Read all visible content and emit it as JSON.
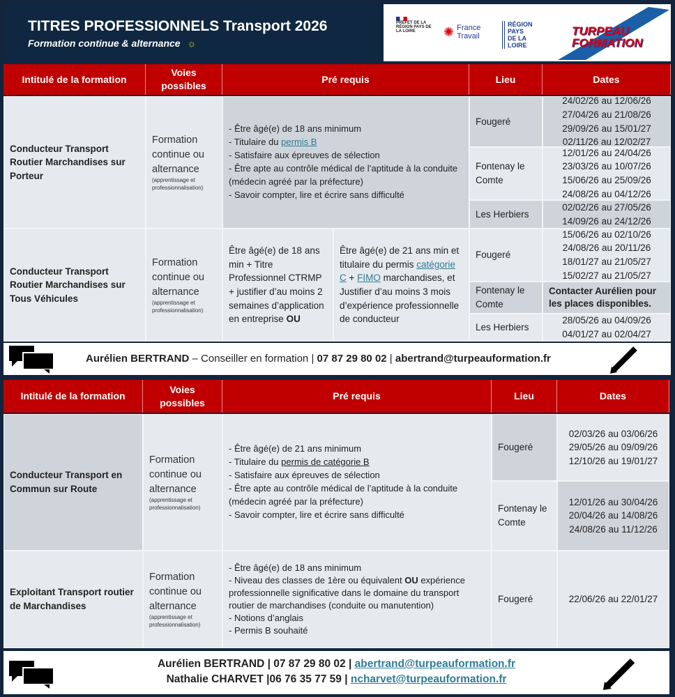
{
  "header": {
    "title": "TITRES PROFESSIONNELS Transport 2026",
    "subtitle": "Formation continue & alternance",
    "bulb_icon": "lightbulb-icon",
    "logos": {
      "prefet": "PRÉFET DE LA RÉGION PAYS DE LA LOIRE",
      "france_travail": "France Travail",
      "region": "RÉGION PAYS DE LA LOIRE",
      "turpeau": "TURPEAU FORMATION"
    }
  },
  "columns": {
    "intitule": "Intitulé de la formation",
    "voies": "Voies possibles",
    "prerequis": "Pré requis",
    "lieu": "Lieu",
    "dates": "Dates"
  },
  "voie": {
    "main": "Formation continue ou alternance",
    "sub": "(apprentissage et professionnalisation)"
  },
  "table1": {
    "row1": {
      "title": "Conducteur Transport Routier Marchandises sur Porteur",
      "prereq": [
        "- Être âgé(e) de 18 ans minimum",
        "- Titulaire du ",
        "permis B",
        "- Satisfaire aux épreuves de sélection",
        "- Être apte au contrôle médical de l’aptitude à la conduite (médecin agréé par la préfecture)",
        "- Savoir compter, lire et écrire sans difficulté"
      ],
      "sites": [
        {
          "lieu": "Fougeré",
          "dates": [
            "24/02/26 au 12/06/26",
            "27/04/26 au 21/08/26",
            "29/09/26 au 15/01/27",
            "02/11/26 au 12/02/27"
          ]
        },
        {
          "lieu": "Fontenay le Comte",
          "dates": [
            "12/01/26 au 24/04/26",
            "23/03/26 au 10/07/26",
            "15/06/26 au 25/09/26",
            "24/08/26 au 04/12/26"
          ]
        },
        {
          "lieu": "Les Herbiers",
          "dates": [
            "02/02/26 au 27/05/26",
            "14/09/26 au 24/12/26"
          ]
        }
      ]
    },
    "row2": {
      "title": "Conducteur Transport Routier Marchandises sur Tous Véhicules",
      "prereq_a": "Être âgé(e) de 18 ans min + Titre Professionnel CTRMP + justifier d’au moins 2 semaines d’application en entreprise ",
      "prereq_a_ou": "OU",
      "prereq_b1": "Être âgé(e) de 21 ans min et titulaire du permis ",
      "prereq_b_link1": "catégorie C",
      "prereq_b_plus": " + ",
      "prereq_b_link2": "FIMO",
      "prereq_b2": " marchandises, et Justifier d’au moins 3 mois d’expérience professionnelle de conducteur",
      "sites": [
        {
          "lieu": "Fougeré",
          "dates": [
            "15/06/26 au 02/10/26",
            "24/08/26 au 20/11/26",
            "18/01/27 au 21/05/27",
            "15/02/27 au 21/05/27"
          ]
        },
        {
          "lieu": "Fontenay le Comte",
          "note": "Contacter Aurélien pour les places disponibles."
        },
        {
          "lieu": "Les Herbiers",
          "dates": [
            "28/05/26 au 04/09/26",
            "04/01/27 au 02/04/27"
          ]
        }
      ]
    }
  },
  "contact1": {
    "name": "Aurélien BERTRAND",
    "role": " – Conseiller en formation ",
    "sep": " | ",
    "phone": "07 87 29 80 02",
    "email": "abertrand@turpeauformation.fr"
  },
  "table2": {
    "row1": {
      "title": "Conducteur Transport en Commun sur Route",
      "prereq": [
        "- Être âgé(e) de 21 ans minimum",
        "- Titulaire du ",
        "permis de catégorie B",
        "- Satisfaire aux épreuves de sélection",
        "- Être apte au contrôle médical de l’aptitude à la conduite (médecin agréé par la préfecture)",
        "- Savoir compter, lire et écrire sans difficulté"
      ],
      "sites": [
        {
          "lieu": "Fougeré",
          "dates": [
            "02/03/26 au 03/06/26",
            "29/05/26 au 09/09/26",
            "12/10/26 au 19/01/27"
          ]
        },
        {
          "lieu": "Fontenay le Comte",
          "dates": [
            "12/01/26 au 30/04/26",
            "20/04/26 au 14/08/26",
            "24/08/26 au 11/12/26"
          ]
        }
      ]
    },
    "row2": {
      "title": "Exploitant Transport routier de Marchandises",
      "prereq": [
        "- Être âgé(e) de 18 ans minimum",
        "- Niveau des classes de 1ère ou équivalent ",
        "OU",
        " expérience professionnelle significative dans le domaine du transport routier de marchandises (conduite ou manutention)",
        "- Notions d’anglais",
        "- Permis B souhaité"
      ],
      "sites": [
        {
          "lieu": "Fougeré",
          "dates": [
            "22/06/26 au 22/01/27"
          ]
        }
      ]
    }
  },
  "contact2": {
    "line1_name": "Aurélien BERTRAND",
    "line1_phone": "| 07 87 29 80 02 |",
    "line1_email": "abertrand@turpeauformation.fr",
    "line2_name": "Nathalie CHARVET",
    "line2_phone": "|06 76 35 77 59 |",
    "line2_email": "ncharvet@turpeauformation.fr"
  }
}
